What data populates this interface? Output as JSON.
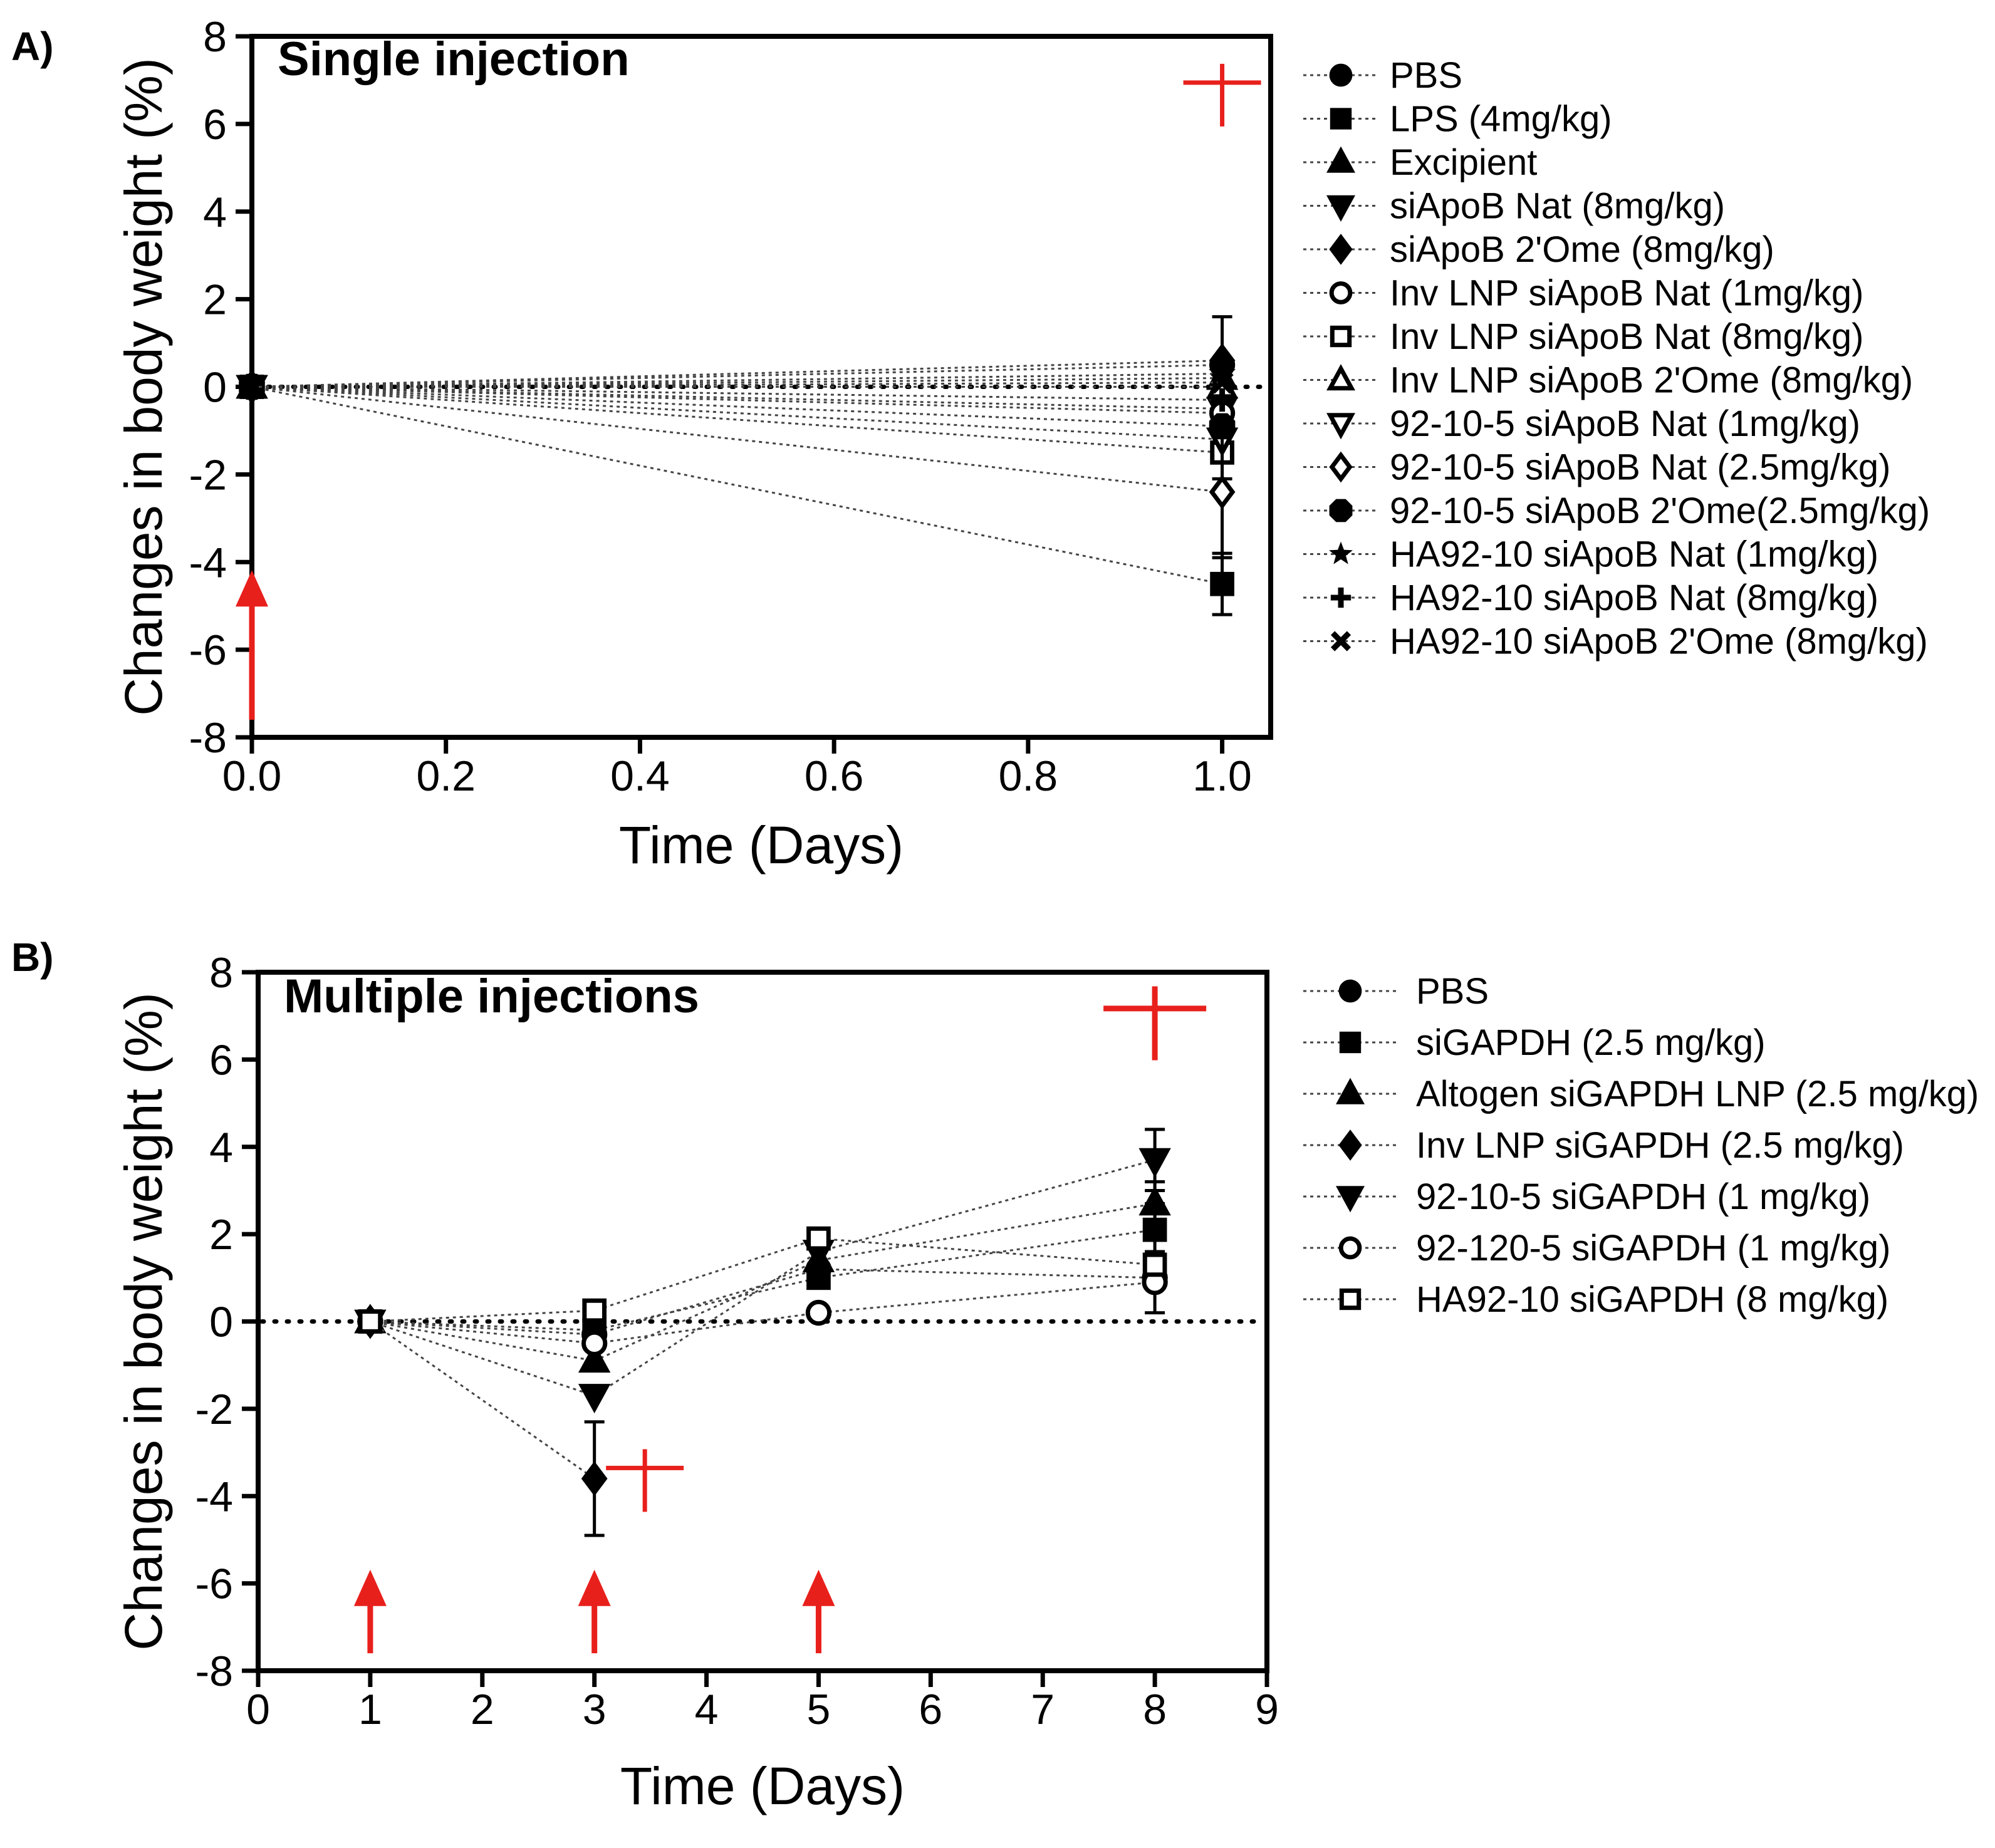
{
  "colors": {
    "axis": "#000000",
    "series_line": "#444444",
    "annotation": "#e8201c",
    "background": "#ffffff"
  },
  "chart_data": [
    {
      "panel_label": "A)",
      "type": "line",
      "title": "Single injection",
      "xlabel": "Time (Days)",
      "ylabel": "Changes in body weight  (%)",
      "xlim": [
        0.0,
        1.05
      ],
      "ylim": [
        -8,
        8
      ],
      "xticks": [
        "0.0",
        "0.2",
        "0.4",
        "0.6",
        "0.8",
        "1.0"
      ],
      "xtick_values": [
        0.0,
        0.2,
        0.4,
        0.6,
        0.8,
        1.0
      ],
      "yticks": [
        "-8",
        "-6",
        "-4",
        "-2",
        "0",
        "2",
        "4",
        "6",
        "8"
      ],
      "ytick_values": [
        -8,
        -6,
        -4,
        -2,
        0,
        2,
        4,
        6,
        8
      ],
      "grid": false,
      "legend_position": "right",
      "reference_line_y": 0,
      "x": [
        0,
        1
      ],
      "series": [
        {
          "name": "PBS",
          "marker": "filled-circle",
          "values": [
            0,
            0.5
          ],
          "err": [
            0,
            0
          ]
        },
        {
          "name": "LPS (4mg/kg)",
          "marker": "filled-square",
          "values": [
            0,
            -4.5
          ],
          "err": [
            0,
            0.7
          ]
        },
        {
          "name": "Excipient",
          "marker": "filled-triangle-up",
          "values": [
            0,
            0.2
          ],
          "err": [
            0,
            0
          ]
        },
        {
          "name": "siApoB Nat (8mg/kg)",
          "marker": "filled-triangle-down",
          "values": [
            0,
            -0.5
          ],
          "err": [
            0,
            0
          ]
        },
        {
          "name": "siApoB 2'Ome (8mg/kg)",
          "marker": "filled-diamond",
          "values": [
            0,
            0.6
          ],
          "err": [
            0,
            1.0
          ]
        },
        {
          "name": "Inv LNP siApoB Nat (1mg/kg)",
          "marker": "open-circle",
          "values": [
            0,
            -0.6
          ],
          "err": [
            0,
            0
          ]
        },
        {
          "name": "Inv LNP siApoB Nat (8mg/kg)",
          "marker": "open-square",
          "values": [
            0,
            -1.5
          ],
          "err": [
            0,
            0.6
          ]
        },
        {
          "name": "Inv LNP siApoB 2'Ome (8mg/kg)",
          "marker": "open-triangle-up",
          "values": [
            0,
            0.0
          ],
          "err": [
            0,
            0
          ]
        },
        {
          "name": "92-10-5 siApoB Nat (1mg/kg)",
          "marker": "open-triangle-down",
          "values": [
            0,
            -1.2
          ],
          "err": [
            0,
            0
          ]
        },
        {
          "name": "92-10-5 siApoB Nat (2.5mg/kg)",
          "marker": "open-diamond",
          "values": [
            0,
            -2.4
          ],
          "err": [
            0,
            1.5
          ]
        },
        {
          "name": "92-10-5 siApoB 2'Ome(2.5mg/kg)",
          "marker": "filled-hexagon",
          "values": [
            0,
            -0.9
          ],
          "err": [
            0,
            0
          ]
        },
        {
          "name": "HA92-10 siApoB Nat (1mg/kg)",
          "marker": "star",
          "values": [
            0,
            0.3
          ],
          "err": [
            0,
            0
          ]
        },
        {
          "name": "HA92-10 siApoB Nat (8mg/kg)",
          "marker": "plus",
          "values": [
            0,
            -0.3
          ],
          "err": [
            0,
            0
          ]
        },
        {
          "name": "HA92-10 siApoB 2'Ome (8mg/kg)",
          "marker": "cross",
          "values": [
            0,
            0.1
          ],
          "err": [
            0,
            0
          ]
        }
      ],
      "annotations": [
        {
          "kind": "arrow",
          "x": 0,
          "y_from": -7.6,
          "y_to": -4.3
        },
        {
          "kind": "dagger",
          "x": 1.0,
          "y": 6.8
        }
      ]
    },
    {
      "panel_label": "B)",
      "type": "line",
      "title": "Multiple injections",
      "xlabel": "Time (Days)",
      "ylabel": "Changes in body weight  (%)",
      "xlim": [
        0,
        9
      ],
      "ylim": [
        -8,
        8
      ],
      "xticks": [
        "0",
        "1",
        "2",
        "3",
        "4",
        "5",
        "6",
        "7",
        "8",
        "9"
      ],
      "xtick_values": [
        0,
        1,
        2,
        3,
        4,
        5,
        6,
        7,
        8,
        9
      ],
      "yticks": [
        "-8",
        "-6",
        "-4",
        "-2",
        "0",
        "2",
        "4",
        "6",
        "8"
      ],
      "ytick_values": [
        -8,
        -6,
        -4,
        -2,
        0,
        2,
        4,
        6,
        8
      ],
      "grid": false,
      "legend_position": "right",
      "reference_line_y": 0,
      "series": [
        {
          "name": "PBS",
          "marker": "filled-circle",
          "x": [
            1,
            3,
            5,
            8
          ],
          "values": [
            0,
            -0.3,
            1.2,
            1.0
          ],
          "err": [
            0,
            0,
            0,
            0
          ]
        },
        {
          "name": "siGAPDH (2.5 mg/kg)",
          "marker": "filled-square",
          "x": [
            1,
            3,
            5,
            8
          ],
          "values": [
            0,
            -0.2,
            1.0,
            2.1
          ],
          "err": [
            0,
            0,
            0,
            0.6
          ]
        },
        {
          "name": "Altogen siGAPDH LNP (2.5 mg/kg)",
          "marker": "filled-triangle-up",
          "x": [
            1,
            3,
            5,
            8
          ],
          "values": [
            0,
            -0.9,
            1.4,
            2.7
          ],
          "err": [
            0,
            0,
            0,
            0.5
          ]
        },
        {
          "name": "Inv LNP siGAPDH (2.5 mg/kg)",
          "marker": "filled-diamond",
          "x": [
            1,
            3
          ],
          "values": [
            0,
            -3.6
          ],
          "err": [
            0,
            1.3
          ]
        },
        {
          "name": "92-10-5 siGAPDH (1 mg/kg)",
          "marker": "filled-triangle-down",
          "x": [
            1,
            3,
            5,
            8
          ],
          "values": [
            0,
            -1.7,
            1.6,
            3.7
          ],
          "err": [
            0,
            0,
            0,
            0.7
          ]
        },
        {
          "name": "92-120-5 siGAPDH (1 mg/kg)",
          "marker": "open-circle",
          "x": [
            1,
            3,
            5,
            8
          ],
          "values": [
            0,
            -0.5,
            0.2,
            0.9
          ],
          "err": [
            0,
            0,
            0,
            0.7
          ]
        },
        {
          "name": "HA92-10 siGAPDH (8 mg/kg)",
          "marker": "open-square",
          "x": [
            1,
            3,
            5,
            8
          ],
          "values": [
            0,
            0.25,
            1.9,
            1.3
          ],
          "err": [
            0,
            0,
            0,
            0
          ]
        }
      ],
      "annotations": [
        {
          "kind": "arrow",
          "x": 1,
          "y_from": -7.6,
          "y_to": -5.8
        },
        {
          "kind": "arrow",
          "x": 3,
          "y_from": -7.6,
          "y_to": -5.8
        },
        {
          "kind": "arrow",
          "x": 5,
          "y_from": -7.6,
          "y_to": -5.8
        },
        {
          "kind": "dagger",
          "x": 3.45,
          "y": -3.5
        },
        {
          "kind": "dagger",
          "x": 8.0,
          "y": 7.0
        }
      ]
    }
  ]
}
